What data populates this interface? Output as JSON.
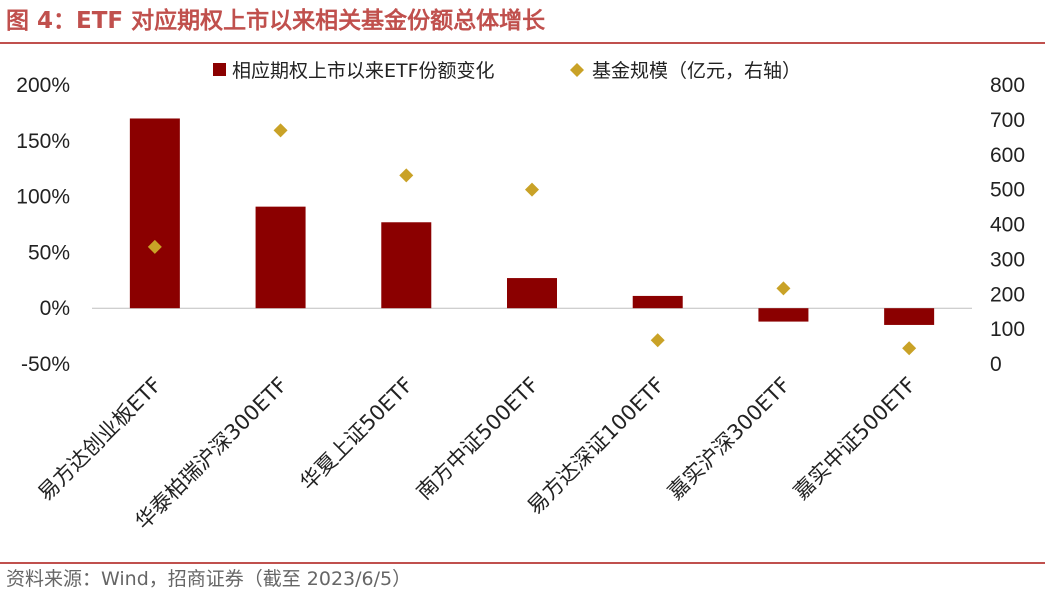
{
  "header": {
    "title": "图 4：ETF 对应期权上市以来相关基金份额总体增长"
  },
  "footer": {
    "source": "资料来源：Wind，招商证券（截至 2023/6/5）"
  },
  "chart_data": {
    "type": "bar",
    "categories": [
      "易方达创业板ETF",
      "华泰柏瑞沪深300ETF",
      "华夏上证50ETF",
      "南方中证500ETF",
      "易方达深证100ETF",
      "嘉实沪深300ETF",
      "嘉实中证500ETF"
    ],
    "series": [
      {
        "name": "相应期权上市以来ETF份额变化",
        "type": "bar",
        "axis": "left",
        "color": "#8b0000",
        "values": [
          1.7,
          0.91,
          0.77,
          0.27,
          0.11,
          -0.12,
          -0.15
        ]
      },
      {
        "name": "基金规模（亿元，右轴）",
        "type": "scatter",
        "marker": "diamond",
        "axis": "right",
        "color": "#c9a227",
        "values": [
          336,
          670,
          541,
          500,
          68,
          217,
          45
        ]
      }
    ],
    "y_left": {
      "lim": [
        -0.5,
        2.0
      ],
      "ticks": [
        2.0,
        1.5,
        1.0,
        0.5,
        0.0,
        -0.5
      ],
      "tick_labels": [
        "200%",
        "150%",
        "100%",
        "50%",
        "0%",
        "-50%"
      ]
    },
    "y_right": {
      "lim": [
        0,
        800
      ],
      "ticks": [
        800,
        700,
        600,
        500,
        400,
        300,
        200,
        100,
        0
      ],
      "tick_labels": [
        "800",
        "700",
        "600",
        "500",
        "400",
        "300",
        "200",
        "100",
        "0"
      ]
    },
    "legend_position": "top",
    "grid": false
  }
}
